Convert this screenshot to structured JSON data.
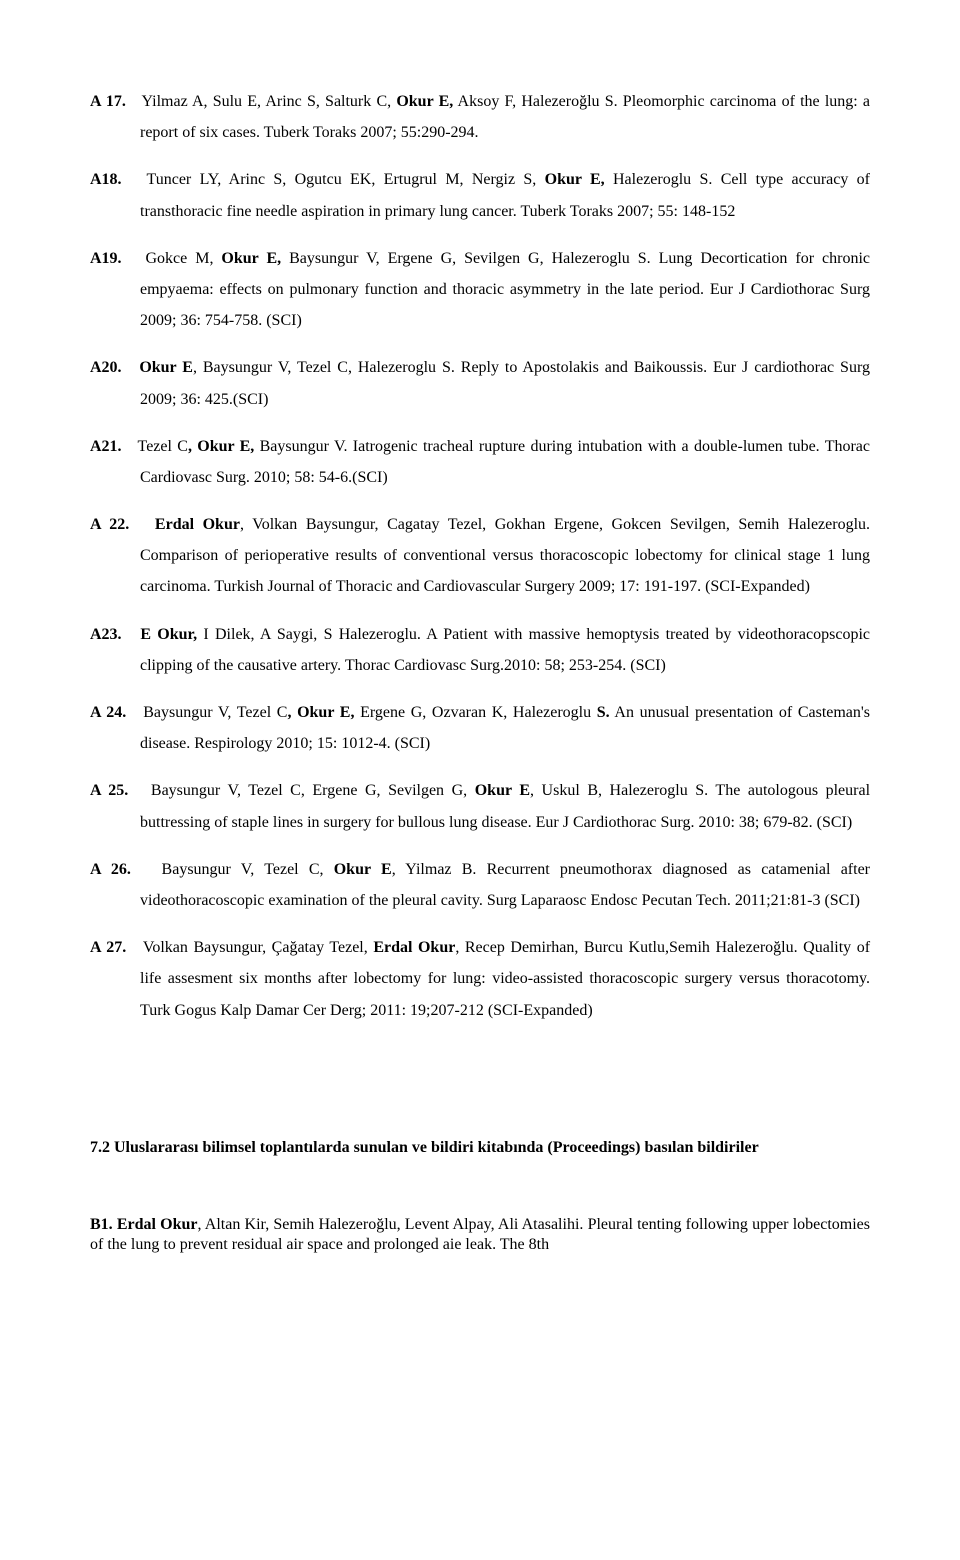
{
  "refs": [
    {
      "num": "A 17.",
      "pre": "Yilmaz A, Sulu E, Arinc S, Salturk C, ",
      "bold1": "Okur E,",
      "post": " Aksoy F, Halezeroğlu S. Pleomorphic carcinoma of the lung: a report of six cases. Tuberk Toraks 2007; 55:290-294."
    },
    {
      "num": "A18.",
      "pre": "Tuncer LY, Arinc S, Ogutcu EK, Ertugrul M, Nergiz S, ",
      "bold1": "Okur E,",
      "post": " Halezeroglu S. Cell type accuracy of transthoracic fine needle aspiration in primary lung cancer. Tuberk Toraks 2007; 55: 148-152"
    },
    {
      "num": "A19.",
      "pre": "Gokce M, ",
      "bold1": "Okur E,",
      "post": " Baysungur V, Ergene G, Sevilgen G, Halezeroglu S. Lung Decortication for chronic empyaema: effects on pulmonary function and thoracic asymmetry in the late period. Eur J Cardiothorac Surg 2009; 36: 754-758.  (SCI)"
    },
    {
      "num": "A20.",
      "pre": "",
      "bold1": "Okur E",
      "post": ", Baysungur V, Tezel C, Halezeroglu S. Reply to Apostolakis and Baikoussis. Eur J cardiothorac Surg 2009; 36: 425.(SCI)"
    },
    {
      "num": "A21.",
      "pre": "Tezel C",
      "bold1": ", Okur E,",
      "post": " Baysungur V. Iatrogenic tracheal rupture during intubation with a double-lumen tube. Thorac Cardiovasc Surg. 2010; 58: 54-6.(SCI)"
    },
    {
      "num": "A 22.",
      "pre": "",
      "bold1": "Erdal Okur",
      "post": ", Volkan Baysungur, Cagatay Tezel, Gokhan Ergene, Gokcen Sevilgen, Semih Halezeroglu. Comparison of perioperative results of conventional versus thoracoscopic lobectomy for clinical stage 1 lung carcinoma. Turkish Journal of Thoracic and Cardiovascular Surgery 2009; 17: 191-197. (SCI-Expanded)"
    },
    {
      "num": "A23.",
      "pre": "",
      "bold1": "E Okur,",
      "post": " I Dilek, A Saygi, S Halezeroglu. A Patient with massive hemoptysis treated by videothoracopscopic clipping of the causative artery. Thorac Cardiovasc Surg.2010: 58; 253-254. (SCI)"
    },
    {
      "num": "A 24.",
      "pre": "Baysungur V, Tezel C",
      "bold1": ", Okur E,",
      "post": " Ergene G, Ozvaran K, Halezeroglu ",
      "bold2": "S.",
      "post2": " An unusual presentation of Casteman's disease. Respirology 2010; 15: 1012-4. (SCI)"
    },
    {
      "num": "A 25.",
      "pre": "Baysungur V, Tezel C, Ergene G, Sevilgen G, ",
      "bold1": "Okur E",
      "post": ", Uskul B, Halezeroglu S. The autologous pleural buttressing of staple lines in surgery for bullous lung disease. Eur J Cardiothorac Surg. 2010: 38; 679-82. (SCI)"
    },
    {
      "num": "A 26.",
      "pre": "Baysungur V, Tezel C, ",
      "bold1": "Okur E",
      "post": ", Yilmaz B. Recurrent pneumothorax diagnosed as catamenial after videothoracoscopic examination of the pleural cavity. Surg Laparaosc Endosc Pecutan Tech. 2011;21:81-3 (SCI)"
    },
    {
      "num": "A 27.",
      "pre": "Volkan Baysungur, Çağatay Tezel, ",
      "bold1": "Erdal Okur",
      "post": ", Recep Demirhan, Burcu Kutlu,Semih Halezeroğlu. Quality of life  assesment six months after lobectomy for lung: video-assisted thoracoscopic surgery versus thoracotomy. Turk Gogus Kalp Damar Cer Derg; 2011: 19;207-212 (SCI-Expanded)"
    }
  ],
  "section": "7.2 Uluslararası bilimsel toplantılarda sunulan ve bildiri kitabında (Proceedings) basılan bildiriler",
  "b1": {
    "num": "B1.",
    "bold": "Erdal Okur",
    "rest": ", Altan Kir, Semih Halezeroğlu, Levent Alpay, Ali Atasalihi. Pleural tenting following upper lobectomies of the lung to prevent residual air space and prolonged aie leak. The 8th"
  }
}
